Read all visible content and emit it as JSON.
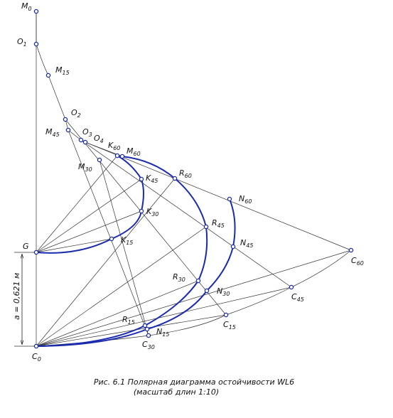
{
  "points": [
    {
      "base": "M",
      "sub": "0"
    },
    {
      "base": "O",
      "sub": "1"
    },
    {
      "base": "M",
      "sub": "15"
    },
    {
      "base": "O",
      "sub": "2"
    },
    {
      "base": "M",
      "sub": "45"
    },
    {
      "base": "O",
      "sub": "3"
    },
    {
      "base": "O",
      "sub": "4"
    },
    {
      "base": "K",
      "sub": "60"
    },
    {
      "base": "M",
      "sub": "60"
    },
    {
      "base": "M",
      "sub": "30"
    },
    {
      "base": "K",
      "sub": "45"
    },
    {
      "base": "R",
      "sub": "60"
    },
    {
      "base": "K",
      "sub": "30"
    },
    {
      "base": "N",
      "sub": "60"
    },
    {
      "base": "R",
      "sub": "45"
    },
    {
      "base": "G",
      "sub": ""
    },
    {
      "base": "K",
      "sub": "15"
    },
    {
      "base": "N",
      "sub": "45"
    },
    {
      "base": "C",
      "sub": "60"
    },
    {
      "base": "R",
      "sub": "30"
    },
    {
      "base": "N",
      "sub": "30"
    },
    {
      "base": "C",
      "sub": "45"
    },
    {
      "base": "R",
      "sub": "15"
    },
    {
      "base": "C",
      "sub": "15"
    },
    {
      "base": "N",
      "sub": "15"
    },
    {
      "base": "C",
      "sub": "30"
    },
    {
      "base": "C",
      "sub": "0"
    }
  ],
  "dimension": "a = 0,621 м",
  "caption": [
    "Рис. 6.1 Полярная диаграмма остойчивости WL6",
    "(масштаб длин 1:10)"
  ]
}
